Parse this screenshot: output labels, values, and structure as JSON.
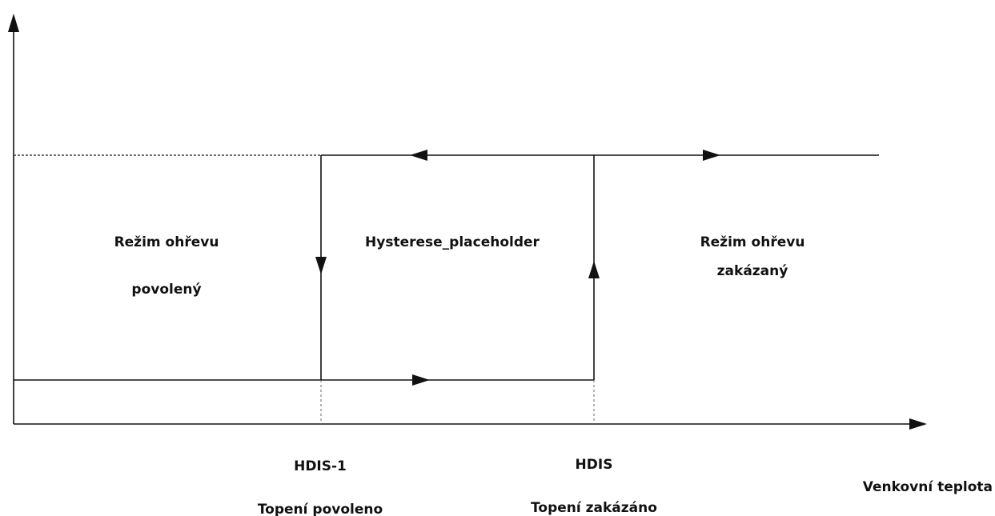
{
  "regions": {
    "left": [
      "Režim ohřevu",
      "povolený"
    ],
    "middle": "Hysterese_placeholder",
    "right": [
      "Režim ohřevu",
      "zakázaný"
    ]
  },
  "thresholds": [
    {
      "label": "HDIS-1",
      "caption": "Topení povoleno"
    },
    {
      "label": "HDIS",
      "caption": "Topení zakázáno"
    }
  ],
  "x_axis_label": "Venkovní teplota"
}
